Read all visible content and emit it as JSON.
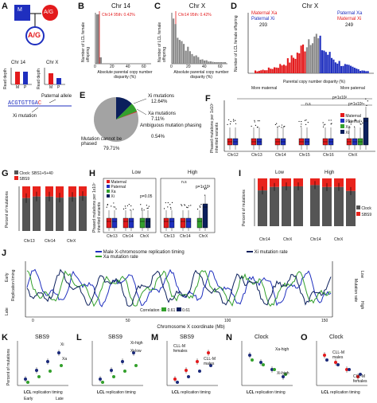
{
  "panel_letters": [
    "A",
    "B",
    "C",
    "D",
    "E",
    "F",
    "G",
    "H",
    "I",
    "J",
    "K",
    "L",
    "M",
    "N",
    "O"
  ],
  "colors": {
    "maternal": "#e31a1c",
    "paternal": "#1f2fbf",
    "xa": "#33a02c",
    "xi": "#0b1f5c",
    "clock": "#555555",
    "sbs9": "#e8231c",
    "gray": "#8a8a8a",
    "navy": "#1b2a7a"
  },
  "panelA": {
    "mother": "M",
    "father": "A/G",
    "child": "A/G",
    "chr14": "Chr 14",
    "chrx": "Chr X",
    "read_depth": "Read depth",
    "m": "M",
    "p": "P",
    "seq_prefix": "ACGTGTTGA",
    "seq_mut": "C",
    "paternal_allele": "Paternal allele",
    "xi_mutation": "Xi mutation"
  },
  "panelB": {
    "title": "Chr 14",
    "annotation": "Chr14 95th: 0.42%",
    "ylabel": "Number of LCL female offspring",
    "xlabel": "Absolute parental copy number disparity (%)",
    "xticks": [
      "0",
      "20",
      "40",
      "60"
    ],
    "yticks": [
      "0",
      "100",
      "200",
      "300"
    ]
  },
  "panelC": {
    "title": "Chr X",
    "annotation": "Chr14 95th: 0.42%",
    "ylabel": "Number of LCL female offspring",
    "xlabel": "Absolute parental copy number disparity (%)",
    "xticks": [
      "0",
      "20",
      "40",
      "60"
    ],
    "yticks": [
      "0",
      "20",
      "40",
      "60"
    ]
  },
  "panelD": {
    "title": "Chr X",
    "left_l1": "Maternal Xa",
    "left_l2": "Paternal Xi",
    "left_n": "293",
    "right_l1": "Paternal Xa",
    "right_l2": "Maternal Xi",
    "right_n": "249",
    "xlabel": "Parental copy number disparity (%)",
    "ylabel": "Number of LCL female offspring",
    "more_maternal": "More maternal",
    "more_paternal": "More paternal",
    "xticks": [
      "-60",
      "-40",
      "-20",
      "0",
      "20",
      "40",
      "60"
    ],
    "yticks": [
      "0",
      "20",
      "40"
    ]
  },
  "panelE": {
    "xi": "Xi mutations",
    "xi_pct": "12.64%",
    "xa": "Xa mutations",
    "xa_pct": "7.11%",
    "amb": "Ambiguous mutation phasing",
    "amb_pct": "0.54%",
    "cannot": "Mutation cannot be phased",
    "cannot_pct": "79.71%"
  },
  "panelF": {
    "ylabel": "Phased mutations per 1x10⁷ inherited variants",
    "legend": [
      "Maternal",
      "Paternal",
      "Xa",
      "Xi"
    ],
    "categories": [
      "Chr12",
      "Chr13",
      "Chr14",
      "Chr15",
      "Chr16",
      "ChrX"
    ],
    "p1": "p=1x10²",
    "p2": "n.s",
    "p3": "p=1x10³",
    "yticks": [
      "0",
      "20",
      "40",
      "60",
      "80"
    ]
  },
  "panelG": {
    "ylabel": "Percent of mutations",
    "legend1": "Clock: SBS1+5+40",
    "legend2": "SBS9",
    "groups": [
      "Chr13",
      "Chr14",
      "ChrX"
    ],
    "sub": [
      "Mat",
      "Pat",
      "Mat",
      "Pat",
      "Xa",
      "Xi"
    ],
    "yticks": [
      "0",
      "25",
      "50",
      "75",
      "100"
    ]
  },
  "panelH": {
    "low": "Low",
    "high": "High",
    "ylabel": "Phased mutations per 1x10⁷ inherited variants",
    "legend": [
      "Maternal",
      "Paternal",
      "Xa",
      "Xi"
    ],
    "groups": [
      "Chr13",
      "Chr14",
      "ChrX",
      "Chr13",
      "Chr14",
      "ChrX"
    ],
    "p1": "p=0.05",
    "p2": "n.s",
    "p3": "p=1x10³"
  },
  "panelI": {
    "low": "Low",
    "high": "High",
    "ylabel": "Percent of mutations",
    "groups": [
      "Chr14",
      "ChrX",
      "Chr14",
      "ChrX"
    ],
    "sub": [
      "Mat",
      "Pat",
      "Xa",
      "Xi",
      "Mat",
      "Pat",
      "Xa",
      "Xi"
    ],
    "legend1": "Clock",
    "legend2": "SBS9"
  },
  "panelJ": {
    "legend1": "Male X-chromosome replication timing",
    "legend2": "Xa mutation rate",
    "legend3": "Xi mutation rate",
    "early": "Early",
    "late": "Late",
    "left_axis": "Replication timing",
    "right_low": "Low",
    "right_high": "High",
    "right_axis": "Mutation rate",
    "xlabel": "Chromosome X coordinate (Mb)",
    "xticks": [
      "0",
      "50",
      "100",
      "150"
    ],
    "corr_label": "Correlation:",
    "corr1": "0.61",
    "corr2": "0.61"
  },
  "panelsKO": [
    {
      "letter": "K",
      "title": "SBS9",
      "labels": [
        "Xi",
        "Xa"
      ]
    },
    {
      "letter": "L",
      "title": "SBS9",
      "labels": [
        "Xi-high",
        "Xi-low"
      ]
    },
    {
      "letter": "M",
      "title": "SBS9",
      "labels": [
        "CLL-M females",
        "CLL-M males"
      ]
    },
    {
      "letter": "N",
      "title": "Clock",
      "labels": [
        "Xa-high",
        "Xi-high"
      ]
    },
    {
      "letter": "O",
      "title": "Clock",
      "labels": [
        "CLL-M males",
        "CLL-M females"
      ]
    }
  ],
  "bottom": {
    "ylabel": "Percent of mutations",
    "xlabel_bold": "LCL",
    "xlabel_rest": " replication timing",
    "early": "Early",
    "late": "Late"
  }
}
